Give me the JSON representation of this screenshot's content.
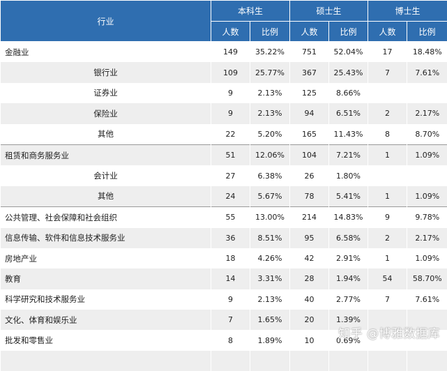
{
  "header": {
    "industry": "行业",
    "groups": [
      "本科生",
      "硕士生",
      "博士生"
    ],
    "count_label": "人数",
    "ratio_label": "比例"
  },
  "rows": [
    {
      "name": "金融业",
      "sub": false,
      "b_n": "149",
      "b_p": "35.22%",
      "m_n": "751",
      "m_p": "52.04%",
      "d_n": "17",
      "d_p": "18.48%"
    },
    {
      "name": "银行业",
      "sub": true,
      "b_n": "109",
      "b_p": "25.77%",
      "m_n": "367",
      "m_p": "25.43%",
      "d_n": "7",
      "d_p": "7.61%"
    },
    {
      "name": "证券业",
      "sub": true,
      "b_n": "9",
      "b_p": "2.13%",
      "m_n": "125",
      "m_p": "8.66%",
      "d_n": "",
      "d_p": ""
    },
    {
      "name": "保险业",
      "sub": true,
      "b_n": "9",
      "b_p": "2.13%",
      "m_n": "94",
      "m_p": "6.51%",
      "d_n": "2",
      "d_p": "2.17%"
    },
    {
      "name": "其他",
      "sub": true,
      "b_n": "22",
      "b_p": "5.20%",
      "m_n": "165",
      "m_p": "11.43%",
      "d_n": "8",
      "d_p": "8.70%"
    },
    {
      "name": "租赁和商务服务业",
      "sub": false,
      "sep": true,
      "b_n": "51",
      "b_p": "12.06%",
      "m_n": "104",
      "m_p": "7.21%",
      "d_n": "1",
      "d_p": "1.09%"
    },
    {
      "name": "会计业",
      "sub": true,
      "b_n": "27",
      "b_p": "6.38%",
      "m_n": "26",
      "m_p": "1.80%",
      "d_n": "",
      "d_p": ""
    },
    {
      "name": "其他",
      "sub": true,
      "b_n": "24",
      "b_p": "5.67%",
      "m_n": "78",
      "m_p": "5.41%",
      "d_n": "1",
      "d_p": "1.09%"
    },
    {
      "name": "公共管理、社会保障和社会组织",
      "sub": false,
      "sep": true,
      "b_n": "55",
      "b_p": "13.00%",
      "m_n": "214",
      "m_p": "14.83%",
      "d_n": "9",
      "d_p": "9.78%"
    },
    {
      "name": "信息传输、软件和信息技术服务业",
      "sub": false,
      "b_n": "36",
      "b_p": "8.51%",
      "m_n": "95",
      "m_p": "6.58%",
      "d_n": "2",
      "d_p": "2.17%"
    },
    {
      "name": "房地产业",
      "sub": false,
      "b_n": "18",
      "b_p": "4.26%",
      "m_n": "42",
      "m_p": "2.91%",
      "d_n": "1",
      "d_p": "1.09%"
    },
    {
      "name": "教育",
      "sub": false,
      "b_n": "14",
      "b_p": "3.31%",
      "m_n": "28",
      "m_p": "1.94%",
      "d_n": "54",
      "d_p": "58.70%"
    },
    {
      "name": "科学研究和技术服务业",
      "sub": false,
      "b_n": "9",
      "b_p": "2.13%",
      "m_n": "40",
      "m_p": "2.77%",
      "d_n": "7",
      "d_p": "7.61%"
    },
    {
      "name": "文化、体育和娱乐业",
      "sub": false,
      "b_n": "7",
      "b_p": "1.65%",
      "m_n": "20",
      "m_p": "1.39%",
      "d_n": "",
      "d_p": ""
    },
    {
      "name": "批发和零售业",
      "sub": false,
      "b_n": "8",
      "b_p": "1.89%",
      "m_n": "10",
      "m_p": "0.69%",
      "d_n": "",
      "d_p": ""
    },
    {
      "name": "",
      "sub": false,
      "b_n": "",
      "b_p": "",
      "m_n": "",
      "m_p": "",
      "d_n": "",
      "d_p": ""
    }
  ],
  "watermark": "知乎 @博雅数据库"
}
